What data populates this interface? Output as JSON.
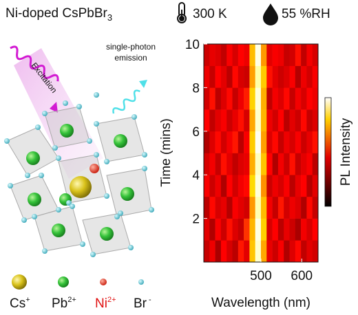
{
  "header": {
    "material": "Ni-doped CsPbBr",
    "material_subscript": "3",
    "temperature": "300 K",
    "humidity": "55 %RH"
  },
  "illustration": {
    "excitation": "Excitation",
    "emission_line1": "single-photon",
    "emission_line2": "emission"
  },
  "legend": [
    {
      "symbol": "Cs",
      "charge": "+"
    },
    {
      "symbol": "Pb",
      "charge": "2+"
    },
    {
      "symbol": "Ni",
      "charge": "2+"
    },
    {
      "symbol": "Br",
      "charge": " -"
    }
  ],
  "chart_data": {
    "type": "heatmap",
    "x_label": "Wavelength (nm)",
    "y_label": "Time (mins)",
    "colorbar_label": "PL Intensity",
    "xlim": [
      360,
      640
    ],
    "xticks": [
      500,
      600
    ],
    "ylim": [
      0,
      10
    ],
    "yticks": [
      2,
      4,
      6,
      8,
      10
    ],
    "x": [
      367,
      381,
      395,
      409,
      423,
      437,
      451,
      465,
      479,
      493,
      507,
      521,
      535,
      549,
      563,
      577,
      591,
      605,
      619,
      633
    ],
    "y": [
      0.5,
      1.5,
      2.5,
      3.5,
      4.5,
      5.5,
      6.5,
      7.5,
      8.5,
      9.5
    ],
    "z": [
      [
        0.35,
        0.42,
        0.3,
        0.45,
        0.38,
        0.33,
        0.48,
        0.4,
        0.72,
        0.96,
        0.68,
        0.41,
        0.36,
        0.44,
        0.31,
        0.39,
        0.46,
        0.34,
        0.4,
        0.37
      ],
      [
        0.4,
        0.31,
        0.44,
        0.36,
        0.47,
        0.39,
        0.35,
        0.52,
        0.7,
        0.98,
        0.74,
        0.38,
        0.45,
        0.33,
        0.41,
        0.36,
        0.3,
        0.43,
        0.38,
        0.45
      ],
      [
        0.33,
        0.46,
        0.38,
        0.41,
        0.32,
        0.44,
        0.4,
        0.37,
        0.66,
        0.94,
        0.71,
        0.43,
        0.35,
        0.48,
        0.37,
        0.42,
        0.39,
        0.31,
        0.46,
        0.35
      ],
      [
        0.44,
        0.36,
        0.42,
        0.31,
        0.45,
        0.37,
        0.43,
        0.46,
        0.75,
        0.97,
        0.65,
        0.36,
        0.42,
        0.38,
        0.44,
        0.33,
        0.41,
        0.45,
        0.32,
        0.4
      ],
      [
        0.38,
        0.43,
        0.35,
        0.47,
        0.4,
        0.34,
        0.39,
        0.41,
        0.69,
        0.95,
        0.72,
        0.45,
        0.31,
        0.43,
        0.36,
        0.47,
        0.35,
        0.4,
        0.44,
        0.33
      ],
      [
        0.31,
        0.39,
        0.46,
        0.37,
        0.43,
        0.48,
        0.33,
        0.44,
        0.73,
        0.99,
        0.67,
        0.39,
        0.46,
        0.35,
        0.42,
        0.38,
        0.44,
        0.36,
        0.41,
        0.47
      ],
      [
        0.45,
        0.34,
        0.4,
        0.44,
        0.36,
        0.41,
        0.47,
        0.38,
        0.68,
        0.96,
        0.7,
        0.42,
        0.37,
        0.45,
        0.33,
        0.4,
        0.36,
        0.46,
        0.35,
        0.39
      ],
      [
        0.37,
        0.47,
        0.33,
        0.39,
        0.46,
        0.35,
        0.42,
        0.49,
        0.74,
        0.97,
        0.69,
        0.34,
        0.43,
        0.39,
        0.46,
        0.35,
        0.43,
        0.38,
        0.45,
        0.42
      ],
      [
        0.42,
        0.35,
        0.45,
        0.4,
        0.33,
        0.46,
        0.38,
        0.36,
        0.67,
        0.93,
        0.73,
        0.47,
        0.4,
        0.36,
        0.39,
        0.44,
        0.32,
        0.42,
        0.37,
        0.44
      ],
      [
        0.36,
        0.41,
        0.39,
        0.34,
        0.44,
        0.38,
        0.45,
        0.42,
        0.71,
        0.98,
        0.66,
        0.4,
        0.44,
        0.42,
        0.35,
        0.37,
        0.47,
        0.34,
        0.43,
        0.38
      ]
    ]
  }
}
